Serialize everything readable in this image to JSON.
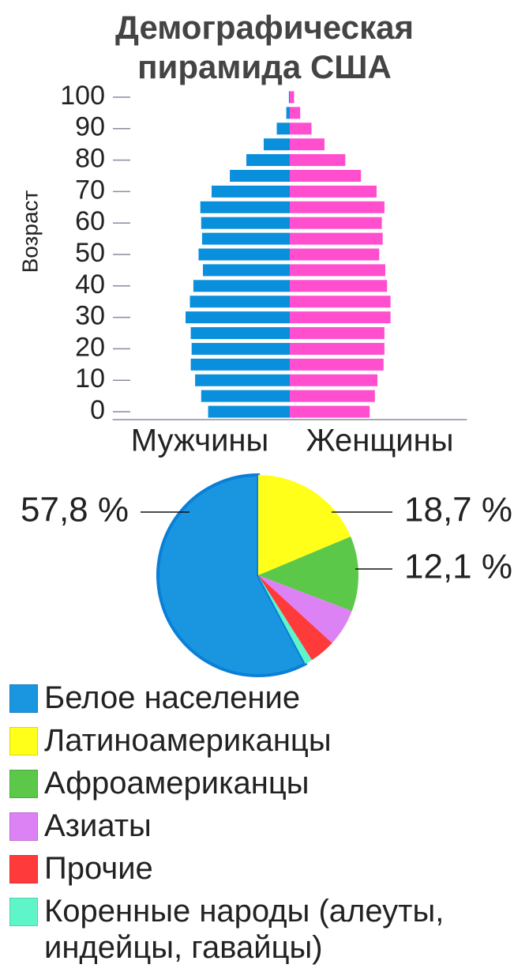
{
  "chart_data": [
    {
      "type": "pyramid",
      "title": "Демографическая пирамида США",
      "y_label": "Возраст",
      "y": [
        0,
        5,
        10,
        15,
        20,
        25,
        30,
        35,
        40,
        45,
        50,
        55,
        60,
        65,
        70,
        75,
        80,
        85,
        90,
        95,
        100
      ],
      "series": [
        {
          "name": "Мужчины",
          "color": "#0a8fdc",
          "values": [
            9.4,
            10.2,
            10.9,
            11.4,
            11.3,
            11.4,
            12.0,
            11.5,
            11.1,
            10.0,
            10.5,
            10.1,
            10.2,
            10.3,
            9.0,
            6.9,
            5.0,
            3.0,
            1.5,
            0.4,
            0.1
          ]
        },
        {
          "name": "Женщины",
          "color": "#ff4fcf",
          "values": [
            9.2,
            9.8,
            10.1,
            10.8,
            10.9,
            10.9,
            11.6,
            11.6,
            11.2,
            11.0,
            10.3,
            10.7,
            10.6,
            10.9,
            10.0,
            8.2,
            6.4,
            4.0,
            2.5,
            1.2,
            0.5
          ]
        }
      ],
      "xlim": [
        0,
        20.4
      ],
      "ylim": [
        -2.5,
        102.5
      ],
      "yticks": [
        0,
        10,
        20,
        30,
        40,
        50,
        60,
        70,
        80,
        90,
        100
      ]
    },
    {
      "type": "pie",
      "categories": [
        "Белое население",
        "Латиноамериканцы",
        "Афроамериканцы",
        "Азиаты",
        "Прочие",
        "Коренные народы (алеуты, индейцы, гавайцы)"
      ],
      "values": [
        57.8,
        18.7,
        12.1,
        6.0,
        4.2,
        1.2
      ],
      "value_labels": [
        "57,8 %",
        "18,7 %",
        "12,1 %",
        null,
        null,
        null
      ],
      "colors": [
        "#1a96e0",
        "#ffff1a",
        "#5cc84a",
        "#dd82f5",
        "#ff3a3a",
        "#5ef5c8"
      ]
    }
  ]
}
